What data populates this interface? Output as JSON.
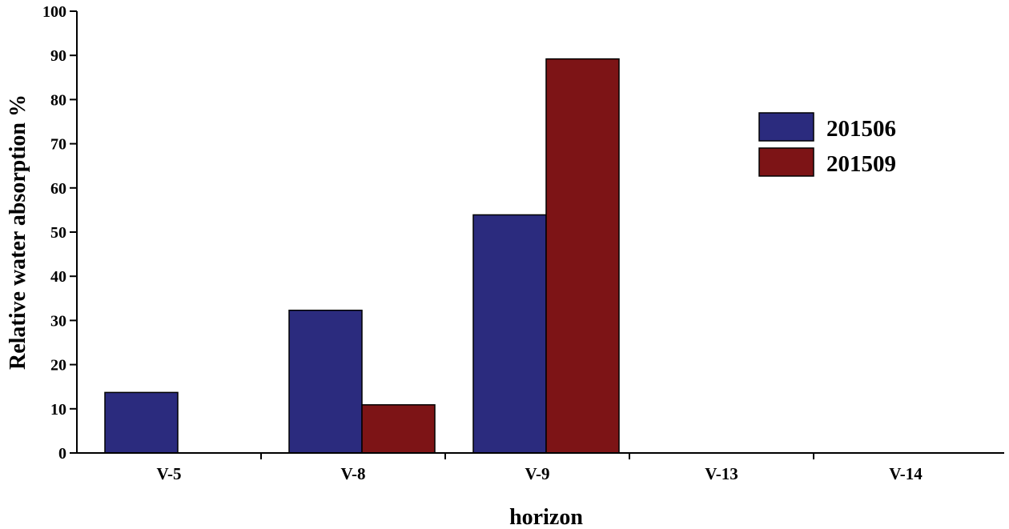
{
  "chart_data": {
    "type": "bar",
    "categories": [
      "V-5",
      "V-8",
      "V-9",
      "V-13",
      "V-14"
    ],
    "series": [
      {
        "name": "201506",
        "values": [
          13.7,
          32.3,
          53.9,
          0,
          0
        ],
        "color": "#2b2b7e"
      },
      {
        "name": "201509",
        "values": [
          0,
          10.9,
          89.2,
          0,
          0
        ],
        "color": "#7d1416"
      }
    ],
    "title": "",
    "xlabel": "horizon",
    "ylabel": "Relative water absorption %",
    "ylim": [
      0,
      100
    ],
    "yticks": [
      0,
      10,
      20,
      30,
      40,
      50,
      60,
      70,
      80,
      90,
      100
    ],
    "grid": false,
    "legend_position": "top-right"
  }
}
